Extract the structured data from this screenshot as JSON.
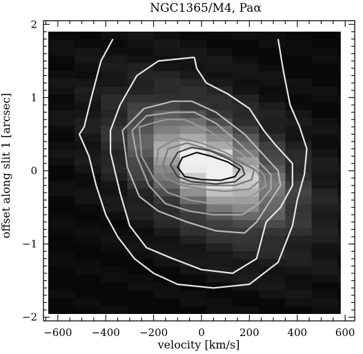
{
  "chart_data": {
    "type": "heatmap",
    "title": "NGC1365/M4, Paα",
    "xlabel": "velocity [km/s]",
    "ylabel": "offset along slit 1 [arcsec]",
    "xlim": [
      -660,
      640
    ],
    "ylim": [
      -2.05,
      2.05
    ],
    "x_major_ticks": [
      -600,
      -400,
      -200,
      0,
      200,
      400,
      600
    ],
    "y_major_ticks": [
      -2,
      -1,
      0,
      1,
      2
    ],
    "x_tick_labels": [
      "−600",
      "−400",
      "−200",
      "0",
      "200",
      "400",
      "600"
    ],
    "y_tick_labels": [
      "−2",
      "−1",
      "0",
      "1",
      "2"
    ],
    "grid": false,
    "colormap": "grayscale",
    "image_extent": {
      "x": [
        -640,
        580
      ],
      "y": [
        -1.95,
        1.9
      ]
    },
    "pixel_size": {
      "dx": 110,
      "dy": 0.107
    },
    "contours": [
      {
        "level": 1,
        "color": "#e8e8e8",
        "points": [
          [
            -370,
            1.8
          ],
          [
            -420,
            1.5
          ],
          [
            -460,
            1.0
          ],
          [
            -490,
            0.6
          ],
          [
            -510,
            0.5
          ],
          [
            -470,
            0.2
          ],
          [
            -440,
            -0.2
          ],
          [
            -400,
            -0.6
          ],
          [
            -350,
            -0.9
          ],
          [
            -280,
            -1.2
          ],
          [
            -200,
            -1.4
          ],
          [
            -100,
            -1.55
          ],
          [
            50,
            -1.6
          ],
          [
            200,
            -1.55
          ],
          [
            320,
            -1.25
          ],
          [
            380,
            -0.75
          ],
          [
            400,
            -0.4
          ],
          [
            430,
            -0.05
          ],
          [
            440,
            0.3
          ],
          [
            410,
            0.6
          ],
          [
            370,
            0.9
          ],
          [
            340,
            1.4
          ],
          [
            320,
            1.8
          ]
        ]
      },
      {
        "level": 2,
        "color": "#e8e8e8",
        "points": [
          [
            -30,
            1.55
          ],
          [
            -180,
            1.5
          ],
          [
            -270,
            1.3
          ],
          [
            -340,
            0.9
          ],
          [
            -380,
            0.55
          ],
          [
            -380,
            0.25
          ],
          [
            -340,
            -0.3
          ],
          [
            -300,
            -0.75
          ],
          [
            -230,
            -1.05
          ],
          [
            -120,
            -1.2
          ],
          [
            0,
            -1.35
          ],
          [
            130,
            -1.4
          ],
          [
            230,
            -1.2
          ],
          [
            270,
            -0.7
          ],
          [
            330,
            -0.5
          ],
          [
            380,
            -0.2
          ],
          [
            380,
            0.1
          ],
          [
            310,
            0.35
          ],
          [
            260,
            0.55
          ],
          [
            200,
            0.85
          ],
          [
            110,
            1.05
          ],
          [
            20,
            1.2
          ],
          [
            -20,
            1.4
          ],
          [
            -30,
            1.55
          ]
        ]
      },
      {
        "level": 3,
        "color": "#bbbbbb",
        "points": [
          [
            -120,
            0.95
          ],
          [
            -240,
            0.85
          ],
          [
            -330,
            0.55
          ],
          [
            -310,
            0.05
          ],
          [
            -260,
            -0.35
          ],
          [
            -180,
            -0.55
          ],
          [
            -60,
            -0.7
          ],
          [
            60,
            -0.82
          ],
          [
            180,
            -0.85
          ],
          [
            230,
            -0.7
          ],
          [
            280,
            -0.45
          ],
          [
            330,
            -0.2
          ],
          [
            320,
            0.0
          ],
          [
            250,
            0.25
          ],
          [
            180,
            0.5
          ],
          [
            60,
            0.8
          ],
          [
            -40,
            0.95
          ],
          [
            -120,
            0.95
          ]
        ]
      },
      {
        "level": 4,
        "color": "#a8a8a8",
        "points": [
          [
            -120,
            0.8
          ],
          [
            -230,
            0.75
          ],
          [
            -290,
            0.55
          ],
          [
            -270,
            0.2
          ],
          [
            -220,
            -0.2
          ],
          [
            -150,
            -0.45
          ],
          [
            -50,
            -0.55
          ],
          [
            50,
            -0.6
          ],
          [
            170,
            -0.6
          ],
          [
            240,
            -0.45
          ],
          [
            290,
            -0.25
          ],
          [
            290,
            -0.05
          ],
          [
            230,
            0.15
          ],
          [
            150,
            0.4
          ],
          [
            60,
            0.65
          ],
          [
            -30,
            0.8
          ],
          [
            -120,
            0.8
          ]
        ]
      },
      {
        "level": 5,
        "color": "#999999",
        "points": [
          [
            -150,
            0.7
          ],
          [
            -260,
            0.6
          ],
          [
            -250,
            0.2
          ],
          [
            -200,
            -0.1
          ],
          [
            -140,
            -0.3
          ],
          [
            -50,
            -0.4
          ],
          [
            50,
            -0.45
          ],
          [
            150,
            -0.45
          ],
          [
            220,
            -0.32
          ],
          [
            270,
            -0.2
          ],
          [
            260,
            -0.05
          ],
          [
            200,
            0.15
          ],
          [
            120,
            0.35
          ],
          [
            30,
            0.55
          ],
          [
            -70,
            0.7
          ],
          [
            -150,
            0.7
          ]
        ]
      },
      {
        "level": 6,
        "color": "#888888",
        "points": [
          [
            -100,
            0.45
          ],
          [
            -180,
            0.3
          ],
          [
            -190,
            0.05
          ],
          [
            -150,
            -0.1
          ],
          [
            -80,
            -0.2
          ],
          [
            0,
            -0.25
          ],
          [
            100,
            -0.28
          ],
          [
            200,
            -0.25
          ],
          [
            250,
            -0.12
          ],
          [
            230,
            0.0
          ],
          [
            170,
            0.12
          ],
          [
            100,
            0.25
          ],
          [
            0,
            0.38
          ],
          [
            -100,
            0.45
          ]
        ]
      },
      {
        "level": 7,
        "color": "#777777",
        "points": [
          [
            -60,
            0.38
          ],
          [
            -140,
            0.3
          ],
          [
            -160,
            0.1
          ],
          [
            -140,
            -0.1
          ],
          [
            -60,
            -0.18
          ],
          [
            40,
            -0.2
          ],
          [
            140,
            -0.2
          ],
          [
            210,
            -0.12
          ],
          [
            220,
            0.02
          ],
          [
            160,
            0.12
          ],
          [
            90,
            0.22
          ],
          [
            0,
            0.32
          ],
          [
            -60,
            0.38
          ]
        ]
      },
      {
        "level": 8,
        "color": "#444444",
        "points": [
          [
            -40,
            0.32
          ],
          [
            -100,
            0.25
          ],
          [
            -130,
            0.08
          ],
          [
            -100,
            -0.08
          ],
          [
            -40,
            -0.15
          ],
          [
            60,
            -0.18
          ],
          [
            140,
            -0.15
          ],
          [
            180,
            -0.05
          ],
          [
            170,
            0.05
          ],
          [
            120,
            0.15
          ],
          [
            40,
            0.27
          ],
          [
            -40,
            0.32
          ]
        ]
      },
      {
        "level": 9,
        "color": "#111111",
        "points": [
          [
            -20,
            0.25
          ],
          [
            -80,
            0.18
          ],
          [
            -100,
            0.05
          ],
          [
            -70,
            -0.08
          ],
          [
            0,
            -0.12
          ],
          [
            80,
            -0.13
          ],
          [
            140,
            -0.08
          ],
          [
            160,
            0.02
          ],
          [
            110,
            0.12
          ],
          [
            40,
            0.2
          ],
          [
            -20,
            0.25
          ]
        ]
      }
    ]
  }
}
